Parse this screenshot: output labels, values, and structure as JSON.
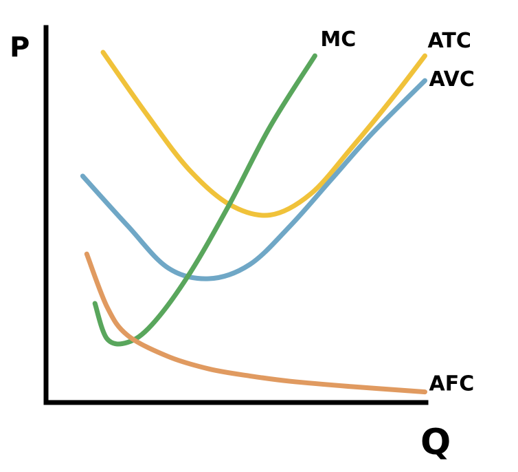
{
  "chart_data": {
    "type": "line",
    "title": "",
    "xlabel": "Q",
    "ylabel": "P",
    "grid": false,
    "legend": "none",
    "series": [
      {
        "name": "ATC",
        "color": "#f0c23a",
        "points": [
          [
            1.4,
            9.9
          ],
          [
            2.5,
            8.1
          ],
          [
            3.5,
            6.6
          ],
          [
            4.5,
            5.6
          ],
          [
            5.5,
            5.3
          ],
          [
            6.5,
            5.9
          ],
          [
            7.5,
            7.2
          ],
          [
            8.5,
            8.6
          ],
          [
            9.3,
            9.8
          ]
        ]
      },
      {
        "name": "AVC",
        "color": "#6fa7c6",
        "points": [
          [
            0.9,
            6.4
          ],
          [
            2,
            5
          ],
          [
            3,
            3.8
          ],
          [
            4,
            3.5
          ],
          [
            5,
            3.9
          ],
          [
            6,
            5
          ],
          [
            7,
            6.3
          ],
          [
            8,
            7.6
          ],
          [
            9.3,
            9.1
          ]
        ]
      },
      {
        "name": "MC",
        "color": "#59a65c",
        "points": [
          [
            1.2,
            2.8
          ],
          [
            1.5,
            1.8
          ],
          [
            2,
            1.7
          ],
          [
            2.6,
            2.2
          ],
          [
            3.5,
            3.6
          ],
          [
            4.5,
            5.6
          ],
          [
            5.5,
            7.8
          ],
          [
            6.6,
            9.8
          ]
        ]
      },
      {
        "name": "AFC",
        "color": "#e09a60",
        "points": [
          [
            1,
            4.2
          ],
          [
            1.5,
            2.7
          ],
          [
            2,
            1.9
          ],
          [
            3,
            1.3
          ],
          [
            4,
            0.95
          ],
          [
            5,
            0.75
          ],
          [
            6,
            0.6
          ],
          [
            7.5,
            0.45
          ],
          [
            9.3,
            0.3
          ]
        ]
      }
    ],
    "xlim": [
      0,
      10
    ],
    "ylim": [
      0,
      10.6
    ]
  }
}
